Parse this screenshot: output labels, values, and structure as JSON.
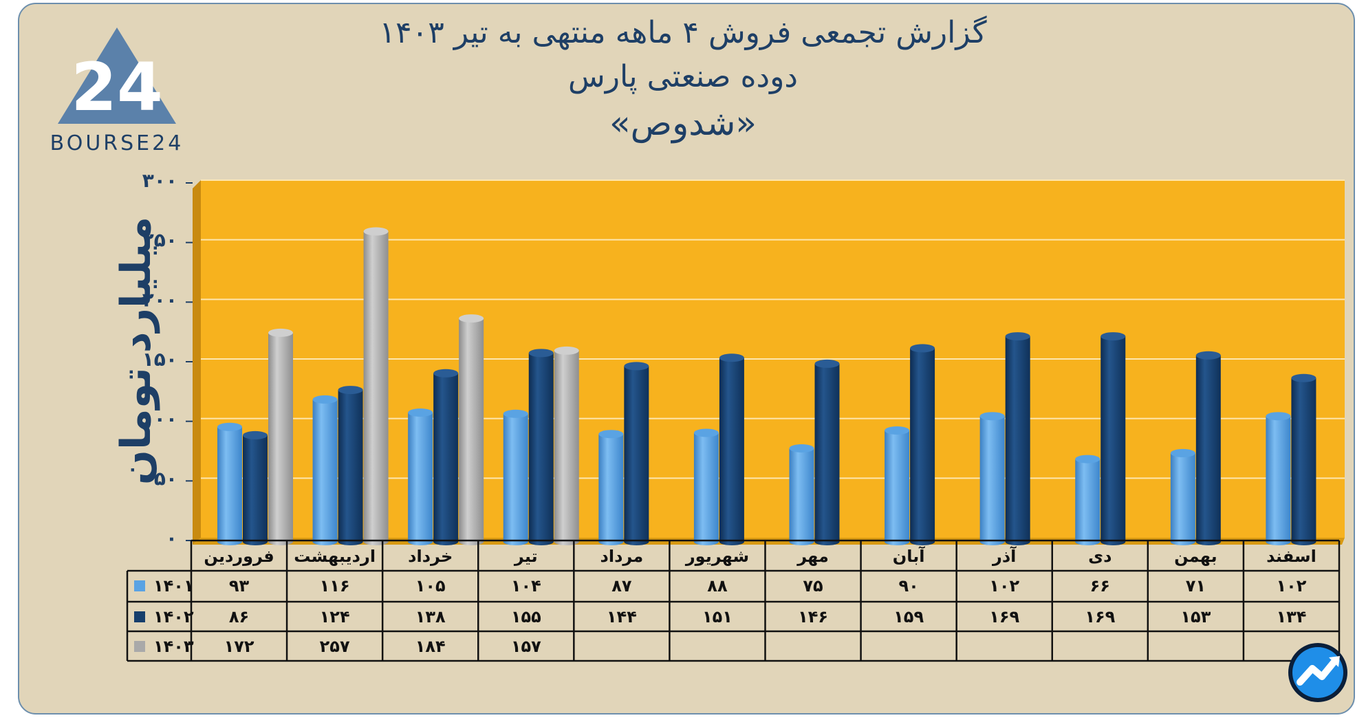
{
  "title_lines": [
    "گزارش تجمعی فروش ۴ ماهه منتهی به تیر ۱۴۰۳",
    "دوده صنعتی پارس",
    "«شدوص»"
  ],
  "logo_text": "BOURSE24",
  "colors": {
    "plot_bg": "#f7b21e",
    "frame_bg": "#e1d5b9",
    "series_1401": "#5aa3e3",
    "series_1402": "#163e6c",
    "series_1403": "#a9a9a9",
    "text": "#1e3f66"
  },
  "chart_data": {
    "type": "bar",
    "title": "گزارش تجمعی فروش ۴ ماهه منتهی به تیر ۱۴۰۳",
    "ylabel": "میلیارد تومان",
    "xlabel": "",
    "ylim": [
      0,
      300
    ],
    "yticks": [
      0,
      50,
      100,
      150,
      200,
      250,
      300
    ],
    "ytick_labels": [
      "۰",
      "۵۰",
      "۱۰۰",
      "۱۵۰",
      "۲۰۰",
      "۲۵۰",
      "۳۰۰"
    ],
    "grid": true,
    "legend": "data-table-left",
    "categories": [
      "فروردین",
      "اردیبهشت",
      "خرداد",
      "تیر",
      "مرداد",
      "شهریور",
      "مهر",
      "آبان",
      "آذر",
      "دی",
      "بهمن",
      "اسفند"
    ],
    "series": [
      {
        "name": "۱۴۰۱",
        "values": [
          93,
          116,
          105,
          104,
          87,
          88,
          75,
          90,
          102,
          66,
          71,
          102
        ],
        "labels": [
          "۹۳",
          "۱۱۶",
          "۱۰۵",
          "۱۰۴",
          "۸۷",
          "۸۸",
          "۷۵",
          "۹۰",
          "۱۰۲",
          "۶۶",
          "۷۱",
          "۱۰۲"
        ]
      },
      {
        "name": "۱۴۰۲",
        "values": [
          86,
          124,
          138,
          155,
          144,
          151,
          146,
          159,
          169,
          169,
          153,
          134
        ],
        "labels": [
          "۸۶",
          "۱۲۴",
          "۱۳۸",
          "۱۵۵",
          "۱۴۴",
          "۱۵۱",
          "۱۴۶",
          "۱۵۹",
          "۱۶۹",
          "۱۶۹",
          "۱۵۳",
          "۱۳۴"
        ]
      },
      {
        "name": "۱۴۰۳",
        "values": [
          172,
          257,
          184,
          157,
          null,
          null,
          null,
          null,
          null,
          null,
          null,
          null
        ],
        "labels": [
          "۱۷۲",
          "۲۵۷",
          "۱۸۴",
          "۱۵۷",
          "",
          "",
          "",
          "",
          "",
          "",
          "",
          ""
        ]
      }
    ]
  }
}
